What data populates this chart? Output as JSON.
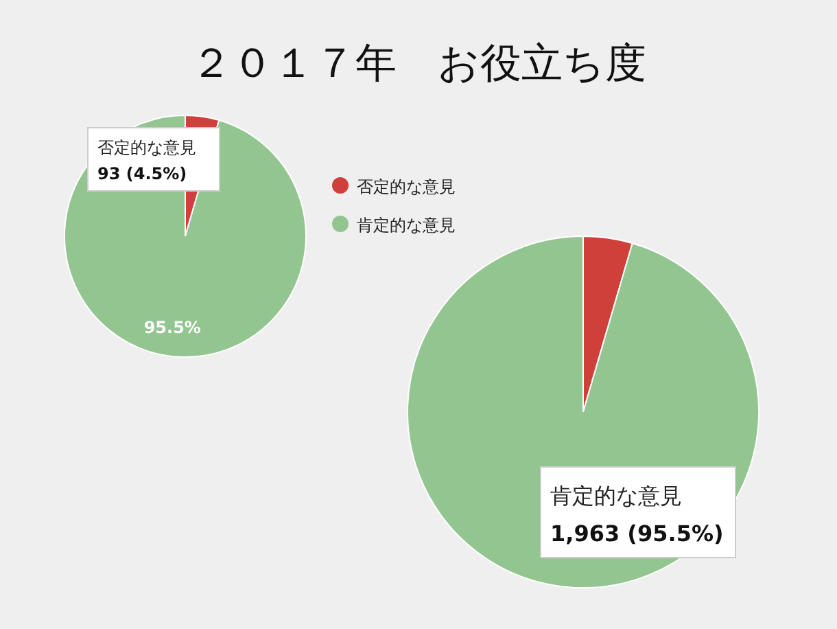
{
  "chart_data": [
    {
      "type": "pie",
      "title": "２０１７年　お役立ち度",
      "categories": [
        "否定的な意見",
        "肯定的な意見"
      ],
      "values": [
        93,
        1963
      ],
      "colors": [
        "#d0403a",
        "#93c591"
      ],
      "value_labels": [
        "93 (4.5%)",
        null
      ],
      "annotations": [
        "95.5%"
      ],
      "legend": "right"
    },
    {
      "type": "pie",
      "categories": [
        null,
        "肯定的な意見"
      ],
      "values": [
        93,
        1963
      ],
      "colors": [
        "#d0403a",
        "#93c591"
      ],
      "value_labels": [
        null,
        "1,963 (95.5%)"
      ]
    }
  ]
}
